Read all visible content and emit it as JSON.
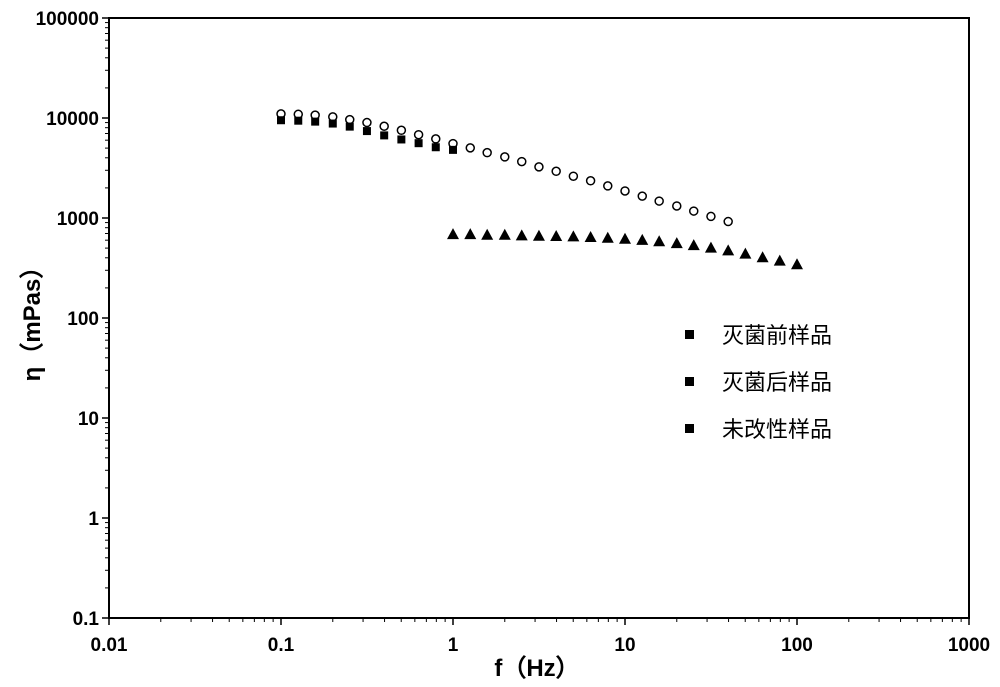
{
  "chart_data": {
    "type": "scatter",
    "xscale": "log",
    "yscale": "log",
    "xlim": [
      0.01,
      1000
    ],
    "ylim": [
      0.1,
      100000
    ],
    "xticks": [
      "0.01",
      "0.1",
      "1",
      "10",
      "100",
      "1000"
    ],
    "yticks": [
      "0.1",
      "1",
      "10",
      "100",
      "1000",
      "10000",
      "100000"
    ],
    "xlabel": "f（Hz）",
    "ylabel": "η（mPas）",
    "grid": false,
    "legend_position": "right",
    "series": [
      {
        "name": "灭菌前样品",
        "marker": "filled-square",
        "x": [
          0.1,
          0.126,
          0.158,
          0.2,
          0.251,
          0.316,
          0.398,
          0.501,
          0.631,
          0.794,
          1.0
        ],
        "y": [
          9500,
          9400,
          9200,
          8800,
          8200,
          7400,
          6700,
          6100,
          5600,
          5100,
          4800
        ]
      },
      {
        "name": "灭菌后样品",
        "marker": "open-circle",
        "x": [
          0.1,
          0.126,
          0.158,
          0.2,
          0.251,
          0.316,
          0.398,
          0.501,
          0.631,
          0.794,
          1.0,
          1.26,
          1.58,
          2.0,
          2.51,
          3.16,
          3.98,
          5.01,
          6.31,
          7.94,
          10.0,
          12.6,
          15.8,
          20.0,
          25.1,
          31.6,
          39.8
        ],
        "y": [
          10500,
          10400,
          10200,
          9800,
          9200,
          8600,
          7900,
          7200,
          6500,
          5900,
          5300,
          4800,
          4300,
          3900,
          3500,
          3100,
          2800,
          2500,
          2250,
          2000,
          1780,
          1580,
          1410,
          1260,
          1120,
          990,
          880
        ]
      },
      {
        "name": "未改性样品",
        "marker": "filled-triangle",
        "x": [
          1.0,
          1.26,
          1.58,
          2.0,
          2.51,
          3.16,
          3.98,
          5.01,
          6.31,
          7.94,
          10.0,
          12.6,
          15.8,
          20.0,
          25.1,
          31.6,
          39.8,
          50.1,
          63.1,
          79.4,
          100.0
        ],
        "y": [
          690,
          690,
          680,
          680,
          670,
          665,
          660,
          655,
          645,
          635,
          620,
          605,
          585,
          560,
          535,
          505,
          475,
          440,
          405,
          375,
          345
        ]
      }
    ]
  }
}
